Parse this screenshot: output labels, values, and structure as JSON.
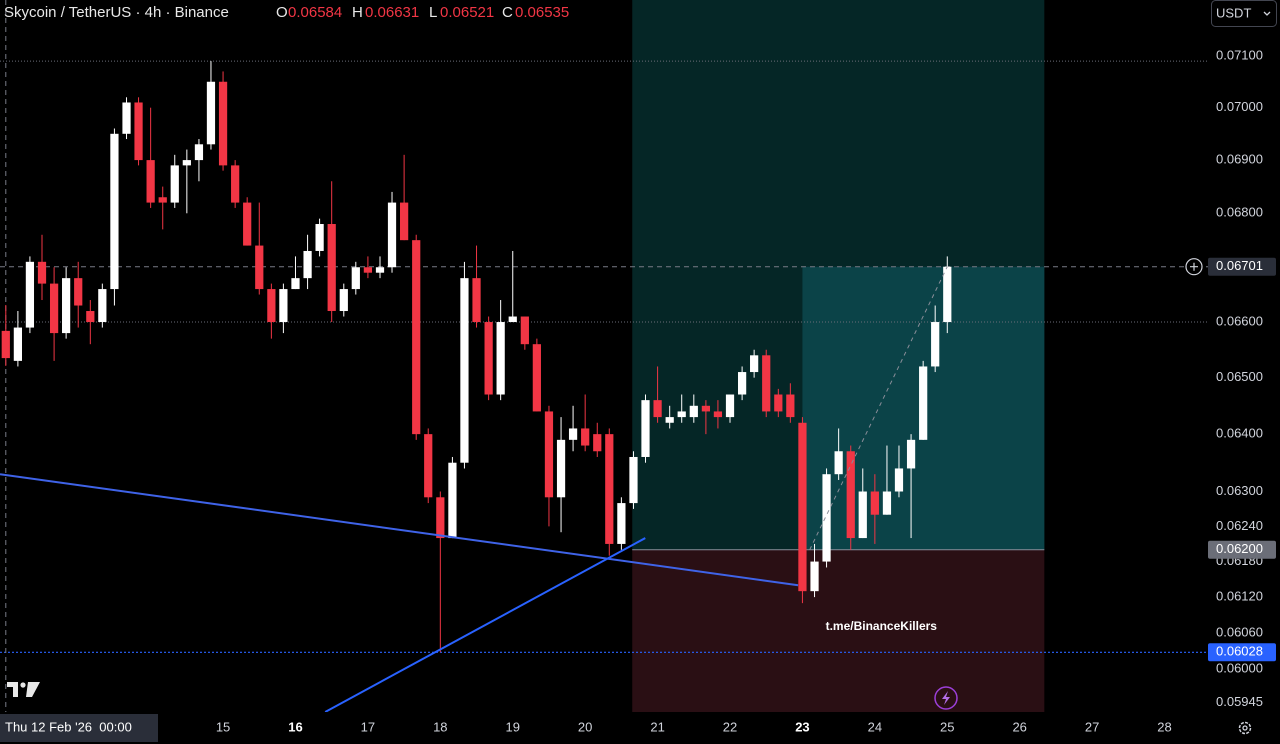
{
  "chart_data": {
    "type": "candlestick",
    "title": "Skycoin / TetherUS · 4h · Binance",
    "ohlc_labels": [
      "O",
      "H",
      "L",
      "C"
    ],
    "currency": "USDT",
    "crosshair_label": "Thu 12 Feb '26  00:00",
    "watermark": "t.me/BinanceKillers",
    "up_color": "#ffffff",
    "down_color": "#f23645",
    "log_scale": true,
    "x": [
      12,
      12.167,
      12.333,
      12.5,
      12.667,
      12.833,
      13,
      13.167,
      13.333,
      13.5,
      13.667,
      13.833,
      14,
      14.167,
      14.333,
      14.5,
      14.667,
      14.833,
      15,
      15.167,
      15.333,
      15.5,
      15.667,
      15.833,
      16,
      16.167,
      16.333,
      16.5,
      16.667,
      16.833,
      17,
      17.167,
      17.333,
      17.5,
      17.667,
      17.833,
      18,
      18.167,
      18.333,
      18.5,
      18.667,
      18.833,
      19,
      19.167,
      19.333,
      19.5,
      19.667,
      19.833,
      20,
      20.167,
      20.333,
      20.5,
      20.667,
      20.833,
      21,
      21.167,
      21.333,
      21.5,
      21.667,
      21.833,
      22,
      22.167,
      22.333,
      22.5,
      22.667,
      22.833,
      23,
      23.167,
      23.333,
      23.5,
      23.667,
      23.833,
      24,
      24.167,
      24.333,
      24.5,
      24.667,
      24.833,
      25
    ],
    "open": [
      0.06584,
      0.0653,
      0.0659,
      0.0671,
      0.0667,
      0.0658,
      0.0668,
      0.0662,
      0.066,
      0.0666,
      0.0695,
      0.0701,
      0.069,
      0.0683,
      0.0682,
      0.0689,
      0.069,
      0.0693,
      0.0705,
      0.0689,
      0.0682,
      0.0674,
      0.0666,
      0.066,
      0.0666,
      0.0668,
      0.0673,
      0.0678,
      0.0662,
      0.0666,
      0.067,
      0.0669,
      0.067,
      0.0682,
      0.0675,
      0.064,
      0.0629,
      0.0622,
      0.0635,
      0.0668,
      0.066,
      0.0647,
      0.066,
      0.0661,
      0.0656,
      0.0644,
      0.0629,
      0.0639,
      0.0641,
      0.064,
      0.064,
      0.0621,
      0.0628,
      0.0636,
      0.0646,
      0.0642,
      0.0643,
      0.0643,
      0.0645,
      0.0644,
      0.0643,
      0.0647,
      0.0651,
      0.0654,
      0.0647,
      0.0647,
      0.0642,
      0.0613,
      0.0618,
      0.0633,
      0.0637,
      0.0622,
      0.063,
      0.0626,
      0.063,
      0.0634,
      0.0639,
      0.0652,
      0.066
    ],
    "high": [
      0.06631,
      0.0662,
      0.0672,
      0.0676,
      0.067,
      0.067,
      0.0671,
      0.0664,
      0.0667,
      0.0696,
      0.0702,
      0.0702,
      0.07,
      0.0685,
      0.0691,
      0.0692,
      0.0694,
      0.0709,
      0.0707,
      0.069,
      0.0683,
      0.0682,
      0.0667,
      0.0667,
      0.0672,
      0.0676,
      0.0679,
      0.0686,
      0.0667,
      0.0671,
      0.0672,
      0.0672,
      0.0684,
      0.0691,
      0.0676,
      0.0641,
      0.063,
      0.0636,
      0.0671,
      0.0674,
      0.0661,
      0.0664,
      0.0673,
      0.0661,
      0.0657,
      0.0645,
      0.0643,
      0.0645,
      0.0647,
      0.0642,
      0.0641,
      0.0629,
      0.0637,
      0.0647,
      0.0652,
      0.0645,
      0.0647,
      0.0647,
      0.0646,
      0.0646,
      0.0647,
      0.0652,
      0.0655,
      0.0655,
      0.0648,
      0.0649,
      0.0643,
      0.0621,
      0.0634,
      0.0641,
      0.0638,
      0.0634,
      0.0633,
      0.0638,
      0.0638,
      0.064,
      0.0653,
      0.0663,
      0.0672
    ],
    "low": [
      0.06521,
      0.0652,
      0.0658,
      0.0664,
      0.0653,
      0.0657,
      0.0659,
      0.0656,
      0.0659,
      0.0663,
      0.0694,
      0.0689,
      0.0681,
      0.0677,
      0.0681,
      0.068,
      0.0686,
      0.0692,
      0.0688,
      0.0681,
      0.0674,
      0.0665,
      0.0657,
      0.0658,
      0.0666,
      0.0666,
      0.0672,
      0.066,
      0.0661,
      0.0665,
      0.0668,
      0.0668,
      0.0669,
      0.0675,
      0.0639,
      0.0628,
      0.06028,
      0.0622,
      0.0634,
      0.0659,
      0.0646,
      0.0646,
      0.066,
      0.0655,
      0.0644,
      0.0624,
      0.0623,
      0.0637,
      0.0637,
      0.0636,
      0.0619,
      0.062,
      0.0627,
      0.0635,
      0.0642,
      0.0641,
      0.0642,
      0.0642,
      0.064,
      0.0641,
      0.0642,
      0.0646,
      0.065,
      0.0643,
      0.0643,
      0.0642,
      0.0611,
      0.0612,
      0.0617,
      0.0632,
      0.062,
      0.0622,
      0.0621,
      0.0626,
      0.0629,
      0.0622,
      0.0639,
      0.0651,
      0.0658
    ],
    "close": [
      0.06535,
      0.0659,
      0.0671,
      0.0667,
      0.0658,
      0.0668,
      0.0663,
      0.066,
      0.0666,
      0.0695,
      0.0701,
      0.069,
      0.0682,
      0.0682,
      0.0689,
      0.069,
      0.0693,
      0.0705,
      0.0689,
      0.0682,
      0.0674,
      0.0666,
      0.066,
      0.0666,
      0.0668,
      0.0673,
      0.0678,
      0.0662,
      0.0666,
      0.067,
      0.0669,
      0.067,
      0.0682,
      0.0675,
      0.064,
      0.0629,
      0.0622,
      0.0635,
      0.0668,
      0.066,
      0.0647,
      0.066,
      0.0661,
      0.0656,
      0.0644,
      0.0629,
      0.0639,
      0.0641,
      0.0638,
      0.0637,
      0.0621,
      0.0628,
      0.0636,
      0.0646,
      0.0643,
      0.0643,
      0.0644,
      0.0645,
      0.0644,
      0.0643,
      0.0647,
      0.0651,
      0.0654,
      0.0644,
      0.0644,
      0.0643,
      0.0613,
      0.0618,
      0.0633,
      0.0637,
      0.0622,
      0.063,
      0.0626,
      0.063,
      0.0634,
      0.0639,
      0.0652,
      0.066,
      0.06701
    ],
    "xlim": [
      11.92,
      28.6
    ],
    "xticks": [
      15,
      16,
      17,
      18,
      19,
      20,
      21,
      22,
      23,
      24,
      25,
      26,
      27,
      28
    ],
    "bold_xticks": [
      16,
      23
    ],
    "ylim": [
      0.0593,
      0.0721
    ],
    "yticks": [
      {
        "value": 0.071,
        "label": "0.07100"
      },
      {
        "value": 0.07,
        "label": "0.07000"
      },
      {
        "value": 0.069,
        "label": "0.06900"
      },
      {
        "value": 0.068,
        "label": "0.06800"
      },
      {
        "value": 0.066,
        "label": "0.06600"
      },
      {
        "value": 0.065,
        "label": "0.06500"
      },
      {
        "value": 0.064,
        "label": "0.06400"
      },
      {
        "value": 0.063,
        "label": "0.06300"
      },
      {
        "value": 0.0624,
        "label": "0.06240"
      },
      {
        "value": 0.0618,
        "label": "0.06180"
      },
      {
        "value": 0.0612,
        "label": "0.06120"
      },
      {
        "value": 0.0606,
        "label": "0.06060"
      },
      {
        "value": 0.06,
        "label": "0.06000"
      },
      {
        "value": 0.05945,
        "label": "0.05945"
      }
    ],
    "position": {
      "start": 20.65,
      "end": 26.34,
      "fill_start": 23,
      "entry": {
        "value": 0.062,
        "label": "0.06200"
      },
      "profit_color": "#052626",
      "fill_color": "#0b4348",
      "loss_color": "#2a0f14"
    },
    "levels": [
      {
        "value": 0.0709
      },
      {
        "value": 0.066
      }
    ],
    "support": {
      "value": 0.06028,
      "color": "#2962ff"
    },
    "trendlines": [
      {
        "x": [
          11.92,
          22.94
        ],
        "y": [
          0.0633,
          0.0614
        ],
        "color": "#3f63e8"
      },
      {
        "x": [
          16.41,
          20.83
        ],
        "y": [
          0.0593,
          0.0622
        ],
        "color": "#2962ff"
      }
    ],
    "projection": {
      "x": [
        23.1,
        25
      ],
      "y": [
        0.062,
        0.06701
      ]
    }
  }
}
